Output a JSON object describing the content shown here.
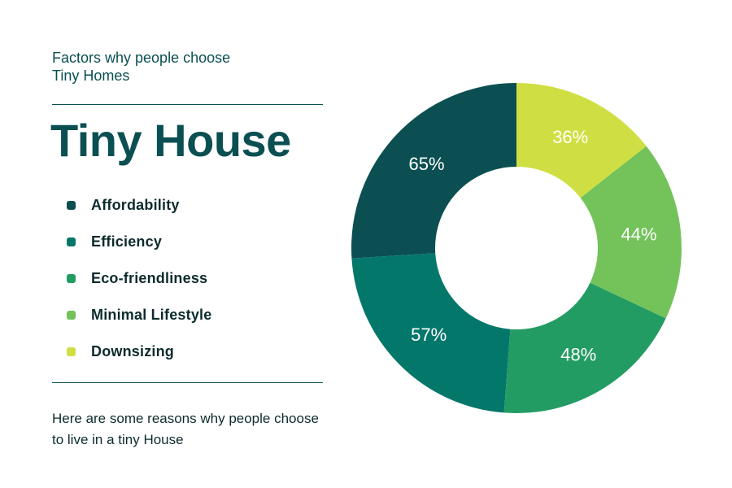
{
  "header": {
    "subtitle_line1": "Factors why people choose",
    "subtitle_line2": "Tiny Homes",
    "title": "Tiny House"
  },
  "footer": {
    "description_line1": "Here are some reasons why people choose",
    "description_line2": "to live in a tiny House"
  },
  "chart_data": {
    "type": "donut",
    "categories": [
      "Affordability",
      "Efficiency",
      "Eco-friendliness",
      "Minimal Lifestyle",
      "Downsizing"
    ],
    "values": [
      65,
      57,
      48,
      44,
      36
    ],
    "labels": [
      "65%",
      "57%",
      "48%",
      "44%",
      "36%"
    ],
    "colors": [
      "#0b4f52",
      "#04776b",
      "#239c63",
      "#73c25a",
      "#cfdf43"
    ],
    "legend_placement": "left"
  }
}
